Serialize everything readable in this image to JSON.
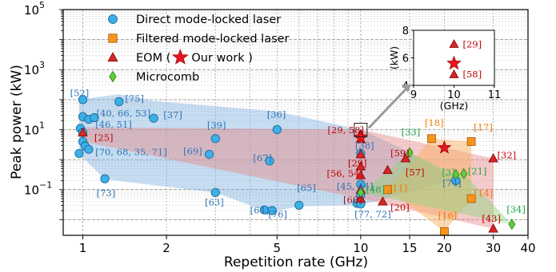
{
  "chart_data": {
    "type": "scatter",
    "x_scale": "log",
    "y_scale": "log",
    "xlim": [
      0.85,
      40
    ],
    "ylim": [
      0.003,
      100000
    ],
    "xlabel": "Repetition rate (GHz)",
    "ylabel": "Peak power (kW)",
    "xticks": [
      1,
      2,
      5,
      10,
      15,
      20,
      30,
      40
    ],
    "ytick_labels": [
      {
        "value": 0.1,
        "label": "10",
        "exp": "−1"
      },
      {
        "value": 10,
        "label": "10",
        "exp": "1"
      },
      {
        "value": 1000,
        "label": "10",
        "exp": "3"
      },
      {
        "value": 100000,
        "label": "10",
        "exp": "5"
      }
    ],
    "grid": true,
    "legend_position": "top-left",
    "legend": [
      {
        "label": "Direct mode-locked laser",
        "series": "direct"
      },
      {
        "label": "Filtered mode-locked laser",
        "series": "filtered"
      },
      {
        "label": "EOM (",
        "label_mid": "Our work",
        "label_end": ")",
        "series": "eom"
      },
      {
        "label": "Microcomb",
        "series": "microcomb"
      }
    ],
    "colors": {
      "direct": "#3ab0e8",
      "filtered": "#f7941d",
      "eom": "#d62728",
      "microcomb": "#5ecf3a",
      "star": "#e8141e",
      "ref_direct": "#2e75b6",
      "ref_filtered": "#f07c00",
      "ref_eom": "#c00000",
      "ref_microcomb": "#1ea84a",
      "grid": "#9a9a9a"
    },
    "series": [
      {
        "name": "Direct mode-locked laser",
        "key": "direct",
        "points": [
          {
            "x": 1.0,
            "y": 100
          },
          {
            "x": 1.0,
            "y": 27
          },
          {
            "x": 1.05,
            "y": 22
          },
          {
            "x": 1.1,
            "y": 25
          },
          {
            "x": 0.98,
            "y": 11
          },
          {
            "x": 1.0,
            "y": 8
          },
          {
            "x": 1.0,
            "y": 4
          },
          {
            "x": 1.02,
            "y": 2.8
          },
          {
            "x": 0.97,
            "y": 1.6
          },
          {
            "x": 1.05,
            "y": 2.2
          },
          {
            "x": 1.35,
            "y": 85
          },
          {
            "x": 1.2,
            "y": 0.23
          },
          {
            "x": 1.8,
            "y": 24
          },
          {
            "x": 2.85,
            "y": 1.5
          },
          {
            "x": 3.0,
            "y": 5
          },
          {
            "x": 3.0,
            "y": 0.08
          },
          {
            "x": 4.7,
            "y": 0.9
          },
          {
            "x": 5.0,
            "y": 10
          },
          {
            "x": 4.5,
            "y": 0.021
          },
          {
            "x": 4.8,
            "y": 0.02
          },
          {
            "x": 6.0,
            "y": 0.03
          },
          {
            "x": 10.0,
            "y": 1.6
          },
          {
            "x": 10.0,
            "y": 0.15
          },
          {
            "x": 10.0,
            "y": 0.065
          },
          {
            "x": 9.7,
            "y": 0.035
          },
          {
            "x": 10.0,
            "y": 0.033
          },
          {
            "x": 22.0,
            "y": 0.2
          }
        ]
      },
      {
        "name": "Filtered mode-locked laser",
        "key": "filtered",
        "points": [
          {
            "x": 18.0,
            "y": 5
          },
          {
            "x": 25.0,
            "y": 4
          },
          {
            "x": 12.5,
            "y": 0.1
          },
          {
            "x": 20.0,
            "y": 0.004
          },
          {
            "x": 25.0,
            "y": 0.05
          }
        ]
      },
      {
        "name": "EOM",
        "key": "eom",
        "points": [
          {
            "x": 1.0,
            "y": 8
          },
          {
            "x": 10.0,
            "y": 4.8
          },
          {
            "x": 10.0,
            "y": 7
          },
          {
            "x": 10.0,
            "y": 1.5
          },
          {
            "x": 10.0,
            "y": 0.6
          },
          {
            "x": 10.0,
            "y": 0.3
          },
          {
            "x": 10.0,
            "y": 0.1
          },
          {
            "x": 10.0,
            "y": 0.05
          },
          {
            "x": 12.5,
            "y": 0.45
          },
          {
            "x": 14.5,
            "y": 1.1
          },
          {
            "x": 12.0,
            "y": 0.04
          },
          {
            "x": 30.0,
            "y": 1.1
          },
          {
            "x": 30.0,
            "y": 0.005
          }
        ]
      },
      {
        "name": "Microcomb",
        "key": "microcomb",
        "points": [
          {
            "x": 15.0,
            "y": 1.7
          },
          {
            "x": 10.0,
            "y": 0.08
          },
          {
            "x": 22.0,
            "y": 0.32
          },
          {
            "x": 23.5,
            "y": 0.34
          },
          {
            "x": 35.0,
            "y": 0.007
          }
        ]
      }
    ],
    "our_work": {
      "x": 10.0,
      "y": 5.6
    },
    "our_work_2": {
      "x": 20.0,
      "y": 2.5
    },
    "regions": [
      {
        "key": "direct",
        "points": [
          {
            "x": 0.97,
            "y": 100
          },
          {
            "x": 1.35,
            "y": 150
          },
          {
            "x": 1.8,
            "y": 90
          },
          {
            "x": 3.0,
            "y": 60
          },
          {
            "x": 5.0,
            "y": 40
          },
          {
            "x": 10.0,
            "y": 10
          },
          {
            "x": 15.0,
            "y": 1.8
          },
          {
            "x": 22.0,
            "y": 0.22
          },
          {
            "x": 10.0,
            "y": 0.03
          },
          {
            "x": 6.0,
            "y": 0.028
          },
          {
            "x": 4.8,
            "y": 0.018
          },
          {
            "x": 4.5,
            "y": 0.02
          },
          {
            "x": 3.0,
            "y": 0.08
          },
          {
            "x": 1.2,
            "y": 0.22
          },
          {
            "x": 0.97,
            "y": 1.6
          }
        ]
      },
      {
        "key": "eom",
        "points": [
          {
            "x": 1.0,
            "y": 12
          },
          {
            "x": 10.0,
            "y": 10
          },
          {
            "x": 30.0,
            "y": 1.1
          },
          {
            "x": 30.0,
            "y": 0.005
          },
          {
            "x": 10.0,
            "y": 0.05
          },
          {
            "x": 1.0,
            "y": 4
          }
        ]
      },
      {
        "key": "filtered",
        "points": [
          {
            "x": 12.5,
            "y": 0.1
          },
          {
            "x": 18.0,
            "y": 5
          },
          {
            "x": 25.0,
            "y": 4
          },
          {
            "x": 25.0,
            "y": 0.05
          },
          {
            "x": 20.0,
            "y": 0.004
          }
        ]
      },
      {
        "key": "microcomb",
        "points": [
          {
            "x": 10.0,
            "y": 0.08
          },
          {
            "x": 15.0,
            "y": 1.7
          },
          {
            "x": 22.0,
            "y": 0.32
          },
          {
            "x": 23.5,
            "y": 0.34
          },
          {
            "x": 35.0,
            "y": 0.007
          }
        ]
      }
    ],
    "annotations": [
      {
        "text": "[52]",
        "x": 0.9,
        "y": 130,
        "color": "ref_direct"
      },
      {
        "text": "[75]",
        "x": 1.42,
        "y": 85,
        "color": "ref_direct"
      },
      {
        "text": "[40, 66, 53]",
        "x": 1.12,
        "y": 27,
        "color": "ref_direct"
      },
      {
        "text": "[46, 51]",
        "x": 1.11,
        "y": 11.5,
        "color": "ref_direct"
      },
      {
        "text": "[25]",
        "x": 1.1,
        "y": 4.2,
        "color": "ref_eom"
      },
      {
        "text": "[70, 68, 35, 71]",
        "x": 1.11,
        "y": 1.4,
        "color": "ref_direct"
      },
      {
        "text": "[73]",
        "x": 1.12,
        "y": 0.06,
        "color": "ref_direct"
      },
      {
        "text": "[37]",
        "x": 1.95,
        "y": 24,
        "color": "ref_direct"
      },
      {
        "text": "[39]",
        "x": 2.8,
        "y": 11,
        "color": "ref_direct"
      },
      {
        "text": "[69]",
        "x": 2.3,
        "y": 1.5,
        "color": "ref_direct"
      },
      {
        "text": "[36]",
        "x": 4.6,
        "y": 25,
        "color": "ref_direct"
      },
      {
        "text": "[67]",
        "x": 4.1,
        "y": 0.9,
        "color": "ref_direct"
      },
      {
        "text": "[65]",
        "x": 5.9,
        "y": 0.09,
        "color": "ref_direct"
      },
      {
        "text": "[63]",
        "x": 2.75,
        "y": 0.03,
        "color": "ref_direct"
      },
      {
        "text": "[64]",
        "x": 4.0,
        "y": 0.016,
        "color": "ref_direct"
      },
      {
        "text": "[76]",
        "x": 4.65,
        "y": 0.012,
        "color": "ref_direct"
      },
      {
        "text": "[29, 58]",
        "x": 7.6,
        "y": 7.5,
        "color": "ref_eom"
      },
      {
        "text": "[38]",
        "x": 9.55,
        "y": 2.3,
        "color": "ref_direct"
      },
      {
        "text": "[29]",
        "x": 9.0,
        "y": 0.6,
        "color": "ref_eom"
      },
      {
        "text": "[56, 54]",
        "x": 7.55,
        "y": 0.27,
        "color": "ref_eom"
      },
      {
        "text": "[45, 44]",
        "x": 8.2,
        "y": 0.1,
        "color": "ref_direct"
      },
      {
        "text": "[60]",
        "x": 8.65,
        "y": 0.036,
        "color": "ref_eom"
      },
      {
        "text": "[48]",
        "x": 10.45,
        "y": 0.08,
        "color": "ref_microcomb"
      },
      {
        "text": "[77, 72]",
        "x": 9.5,
        "y": 0.012,
        "color": "ref_direct"
      },
      {
        "text": "[59]",
        "x": 12.8,
        "y": 1.3,
        "color": "ref_eom"
      },
      {
        "text": "[57]",
        "x": 14.5,
        "y": 0.3,
        "color": "ref_eom"
      },
      {
        "text": "[11]",
        "x": 12.6,
        "y": 0.09,
        "color": "ref_filtered"
      },
      {
        "text": "[20]",
        "x": 12.8,
        "y": 0.02,
        "color": "ref_eom"
      },
      {
        "text": "[33]",
        "x": 14.0,
        "y": 6.5,
        "color": "ref_microcomb"
      },
      {
        "text": "[18]",
        "x": 17.0,
        "y": 13,
        "color": "ref_filtered"
      },
      {
        "text": "[17]",
        "x": 25.5,
        "y": 9.5,
        "color": "ref_filtered"
      },
      {
        "text": "[32]",
        "x": 31.0,
        "y": 1.1,
        "color": "ref_eom"
      },
      {
        "text": "[3]",
        "x": 19.6,
        "y": 0.3,
        "color": "ref_microcomb"
      },
      {
        "text": "[21]",
        "x": 24.3,
        "y": 0.32,
        "color": "ref_microcomb"
      },
      {
        "text": "[74]",
        "x": 19.7,
        "y": 0.13,
        "color": "ref_direct"
      },
      {
        "text": "[14]",
        "x": 25.6,
        "y": 0.06,
        "color": "ref_filtered"
      },
      {
        "text": "[16]",
        "x": 19.0,
        "y": 0.011,
        "color": "ref_filtered"
      },
      {
        "text": "[43]",
        "x": 27.3,
        "y": 0.0085,
        "color": "ref_eom"
      },
      {
        "text": "[34]",
        "x": 33.5,
        "y": 0.017,
        "color": "ref_microcomb"
      }
    ],
    "inset": {
      "xlim": [
        9,
        11
      ],
      "ylim": [
        4,
        8
      ],
      "xticks": [
        9,
        10,
        11
      ],
      "yticks": [
        4,
        6,
        8
      ],
      "xlabel": "(GHz)",
      "ylabel": "(kW)",
      "points": [
        {
          "x": 10.0,
          "y": 7.0,
          "label": "[29]"
        },
        {
          "x": 10.0,
          "y": 4.8,
          "label": "[58]"
        }
      ],
      "star": {
        "x": 10.0,
        "y": 5.6
      }
    }
  }
}
